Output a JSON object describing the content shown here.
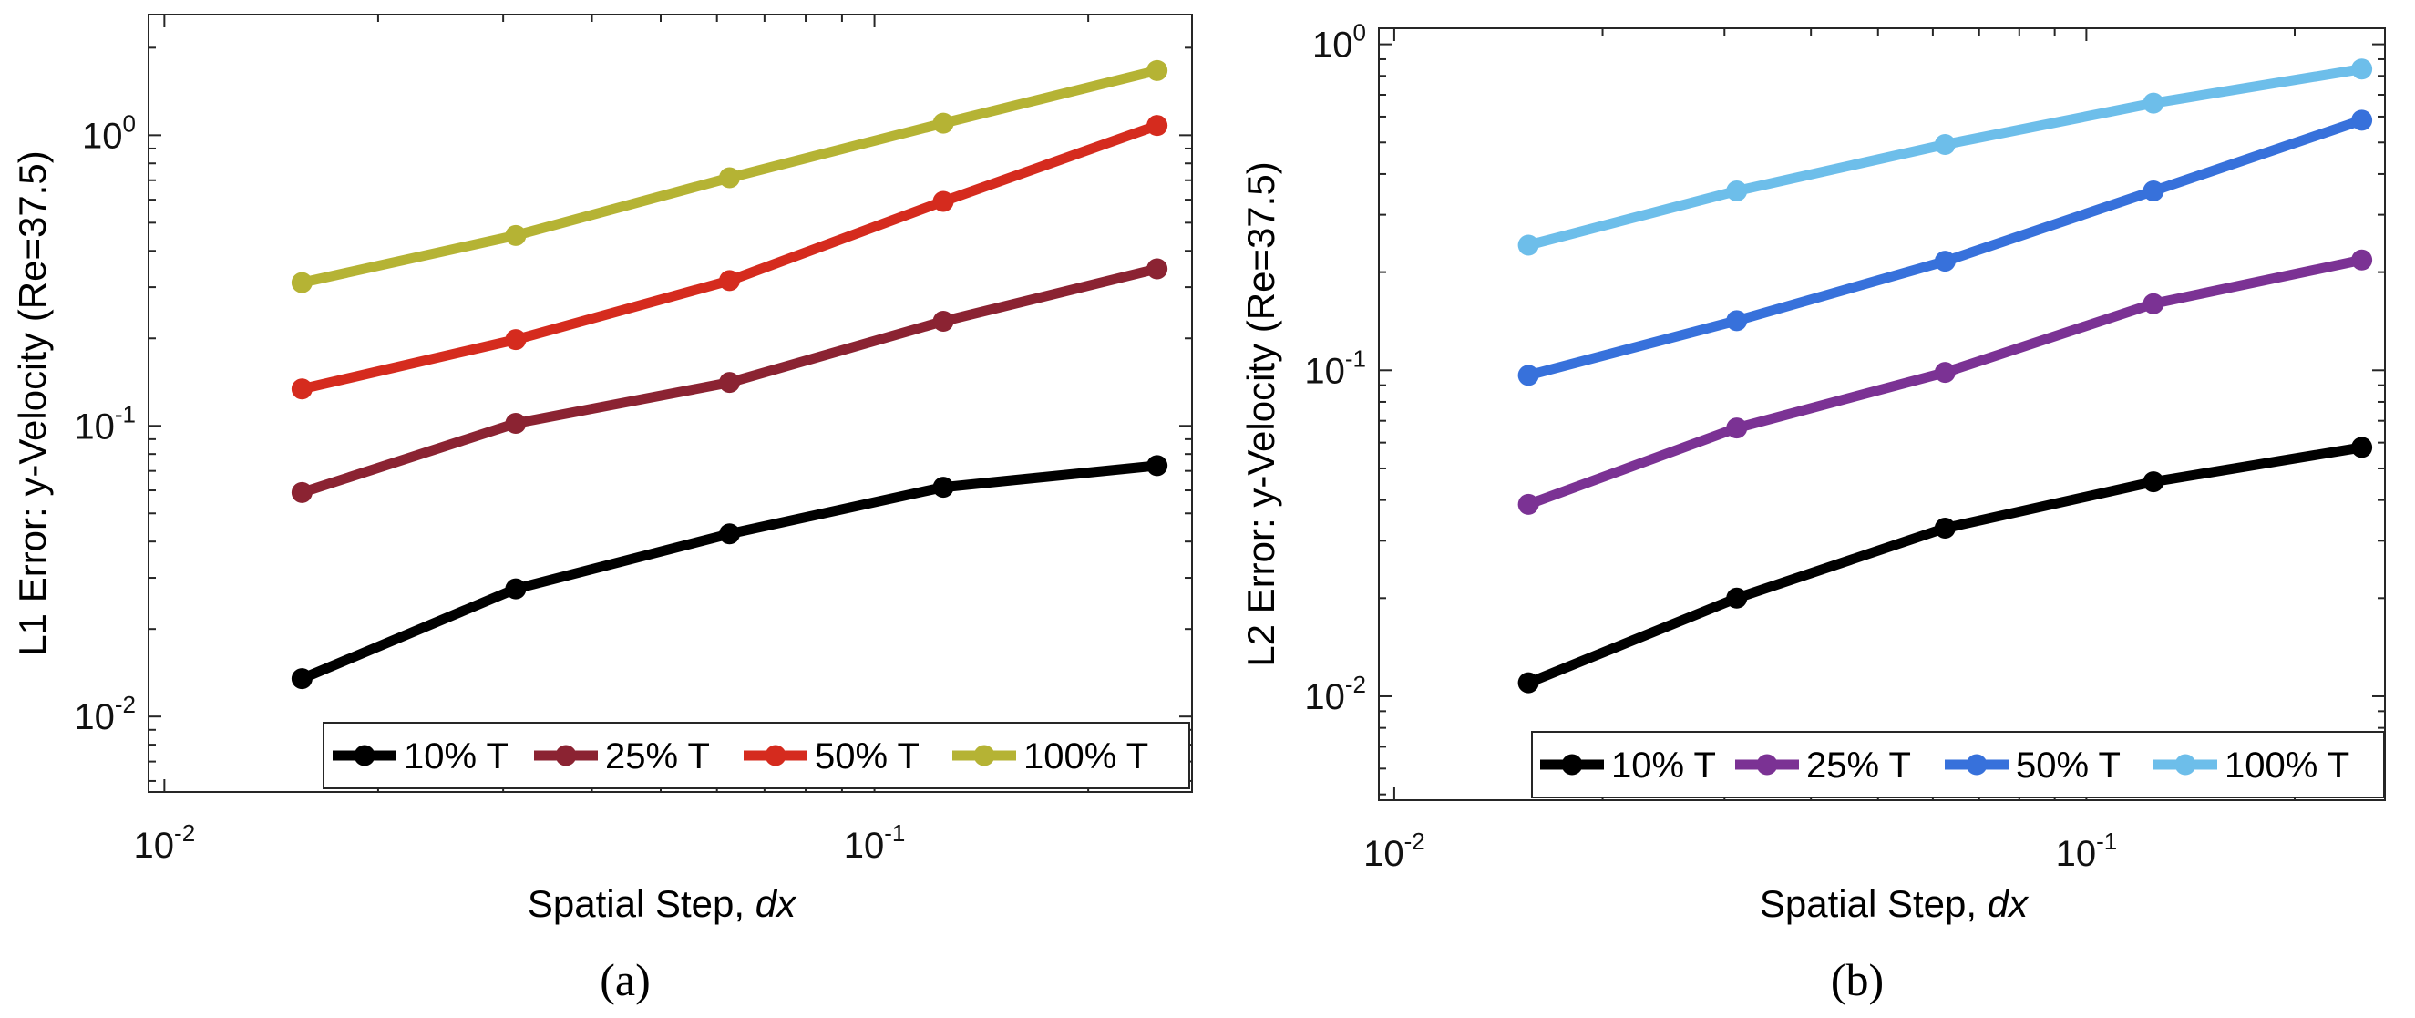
{
  "figure": {
    "panels": [
      {
        "id": "a",
        "caption": "(a)",
        "xlabel_prefix": "Spatial Step, ",
        "xlabel_italic": "dx",
        "ylabel": "L1 Error: y-Velocity (Re=37.5)",
        "x_ticks": [
          {
            "value": 0.01,
            "base": "10",
            "exp": "-2"
          },
          {
            "value": 0.1,
            "base": "10",
            "exp": "-1"
          }
        ],
        "y_ticks": [
          {
            "value": 0.01,
            "base": "10",
            "exp": "-2"
          },
          {
            "value": 0.1,
            "base": "10",
            "exp": "-1"
          },
          {
            "value": 1,
            "base": "10",
            "exp": "0"
          }
        ]
      },
      {
        "id": "b",
        "caption": "(b)",
        "xlabel_prefix": "Spatial Step, ",
        "xlabel_italic": "dx",
        "ylabel": "L2 Error: y-Velocity (Re=37.5)",
        "x_ticks": [
          {
            "value": 0.01,
            "base": "10",
            "exp": "-2"
          },
          {
            "value": 0.1,
            "base": "10",
            "exp": "-1"
          }
        ],
        "y_ticks": [
          {
            "value": 0.01,
            "base": "10",
            "exp": "-2"
          },
          {
            "value": 0.1,
            "base": "10",
            "exp": "-1"
          },
          {
            "value": 1,
            "base": "10",
            "exp": "0"
          }
        ]
      }
    ]
  },
  "chart_data": [
    {
      "type": "line",
      "title": "",
      "xlabel": "Spatial Step, dx",
      "ylabel": "L1 Error: y-Velocity (Re=37.5)",
      "xscale": "log",
      "yscale": "log",
      "xlim": [
        0.0095,
        0.28
      ],
      "ylim": [
        0.0055,
        2.6
      ],
      "grid": false,
      "legend_position": "bottom-right",
      "x": [
        0.015625,
        0.03125,
        0.0625,
        0.125,
        0.25
      ],
      "series": [
        {
          "name": "10% T",
          "color": "#000000",
          "values": [
            0.0135,
            0.0275,
            0.0425,
            0.0615,
            0.073
          ]
        },
        {
          "name": "25% T",
          "color": "#8B2332",
          "values": [
            0.059,
            0.102,
            0.141,
            0.229,
            0.347
          ]
        },
        {
          "name": "50% T",
          "color": "#D52B1E",
          "values": [
            0.134,
            0.198,
            0.316,
            0.592,
            1.08
          ]
        },
        {
          "name": "100% T",
          "color": "#B5B334",
          "values": [
            0.311,
            0.452,
            0.714,
            1.1,
            1.67
          ]
        }
      ]
    },
    {
      "type": "line",
      "title": "",
      "xlabel": "Spatial Step, dx",
      "ylabel": "L2 Error: y-Velocity (Re=37.5)",
      "xscale": "log",
      "yscale": "log",
      "xlim": [
        0.0095,
        0.27
      ],
      "ylim": [
        0.0048,
        1.12
      ],
      "grid": false,
      "legend_position": "bottom-right",
      "x": [
        0.015625,
        0.03125,
        0.0625,
        0.125,
        0.25
      ],
      "series": [
        {
          "name": "10% T",
          "color": "#000000",
          "values": [
            0.011,
            0.02,
            0.0328,
            0.0455,
            0.058
          ]
        },
        {
          "name": "25% T",
          "color": "#7B3294",
          "values": [
            0.0388,
            0.0665,
            0.0985,
            0.16,
            0.218
          ]
        },
        {
          "name": "50% T",
          "color": "#3771DB",
          "values": [
            0.0965,
            0.142,
            0.216,
            0.355,
            0.585
          ]
        },
        {
          "name": "100% T",
          "color": "#6DBEEA",
          "values": [
            0.242,
            0.355,
            0.493,
            0.66,
            0.84
          ]
        }
      ]
    }
  ]
}
